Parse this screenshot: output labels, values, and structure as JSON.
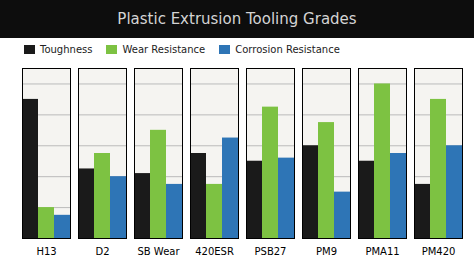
{
  "chart_data": {
    "type": "bar",
    "title": "Plastic Extrusion Tooling Grades",
    "categories": [
      "H13",
      "D2",
      "SB Wear",
      "420ESR",
      "PSB27",
      "PM9",
      "PMA11",
      "PM420"
    ],
    "series": [
      {
        "name": "Toughness",
        "color": "#1a1a1a",
        "values": [
          9.0,
          4.5,
          4.2,
          5.5,
          5.0,
          6.0,
          5.0,
          3.5
        ]
      },
      {
        "name": "Wear Resistance",
        "color": "#7dc242",
        "values": [
          2.0,
          5.5,
          7.0,
          3.5,
          8.5,
          7.5,
          10.0,
          9.0
        ]
      },
      {
        "name": "Corrosion Resistance",
        "color": "#2e75b6",
        "values": [
          1.5,
          4.0,
          3.5,
          6.5,
          5.2,
          3.0,
          5.5,
          6.0
        ]
      }
    ],
    "ylim": [
      0,
      11
    ],
    "yticks": [
      0,
      2,
      4,
      6,
      8,
      10
    ],
    "grid": true,
    "legend": "top",
    "tick_labels": "x"
  }
}
